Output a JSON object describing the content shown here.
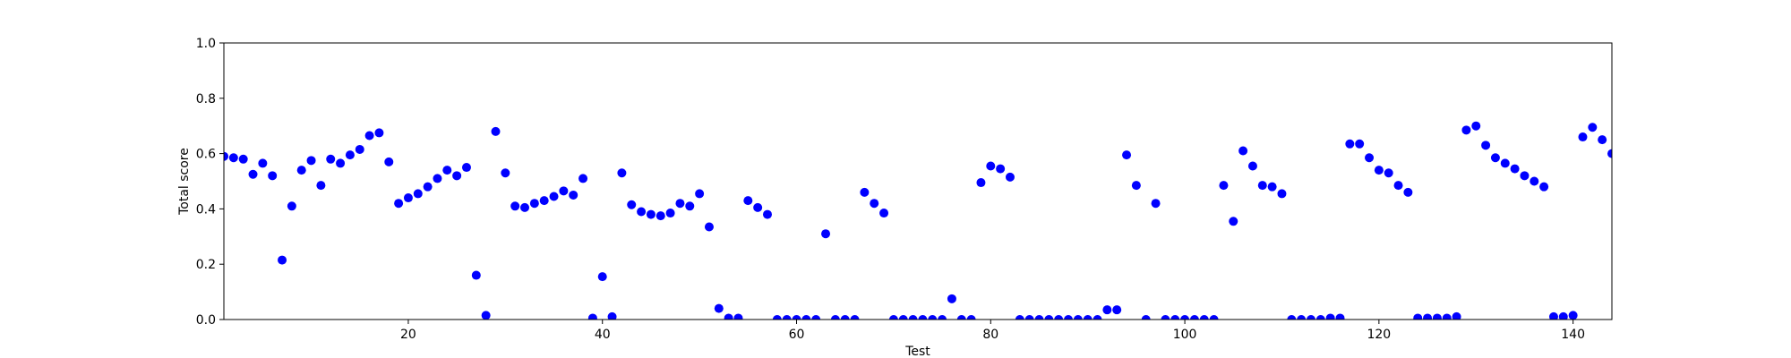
{
  "chart_data": {
    "type": "scatter",
    "title": "",
    "xlabel": "Test",
    "ylabel": "Total score",
    "xlim": [
      1,
      144
    ],
    "ylim": [
      0.0,
      1.0
    ],
    "x_ticks": [
      20,
      40,
      60,
      80,
      100,
      120,
      140
    ],
    "y_ticks": [
      0.0,
      0.2,
      0.4,
      0.6,
      0.8,
      1.0
    ],
    "x_tick_labels": [
      "20",
      "40",
      "60",
      "80",
      "100",
      "120",
      "140"
    ],
    "y_tick_labels": [
      "0.0",
      "0.2",
      "0.4",
      "0.6",
      "0.8",
      "1.0"
    ],
    "grid": false,
    "marker_color": "#0000ff",
    "series": [
      {
        "x": [
          1,
          2,
          3,
          4,
          5,
          6,
          7,
          8,
          9,
          10,
          11,
          12,
          13,
          14,
          15,
          16,
          17,
          18,
          19,
          20,
          21,
          22,
          23,
          24,
          25,
          26,
          27,
          28,
          29,
          30,
          31,
          32,
          33,
          34,
          35,
          36,
          37,
          38,
          39,
          40,
          41,
          42,
          43,
          44,
          45,
          46,
          47,
          48,
          49,
          50,
          51,
          52,
          53,
          54,
          55,
          56,
          57,
          58,
          59,
          60,
          61,
          62,
          63,
          64,
          65,
          66,
          67,
          68,
          69,
          70,
          71,
          72,
          73,
          74,
          75,
          76,
          77,
          78,
          79,
          80,
          81,
          82,
          83,
          84,
          85,
          86,
          87,
          88,
          89,
          90,
          91,
          92,
          93,
          94,
          95,
          96,
          97,
          98,
          99,
          100,
          101,
          102,
          103,
          104,
          105,
          106,
          107,
          108,
          109,
          110,
          111,
          112,
          113,
          114,
          115,
          116,
          117,
          118,
          119,
          120,
          121,
          122,
          123,
          124,
          125,
          126,
          127,
          128,
          129,
          130,
          131,
          132,
          133,
          134,
          135,
          136,
          137,
          138,
          139,
          140,
          141,
          142,
          143,
          144
        ],
        "y": [
          0.59,
          0.585,
          0.58,
          0.525,
          0.565,
          0.52,
          0.215,
          0.41,
          0.54,
          0.575,
          0.485,
          0.58,
          0.565,
          0.595,
          0.615,
          0.665,
          0.675,
          0.57,
          0.42,
          0.44,
          0.455,
          0.48,
          0.51,
          0.54,
          0.52,
          0.55,
          0.16,
          0.015,
          0.68,
          0.53,
          0.41,
          0.405,
          0.42,
          0.43,
          0.445,
          0.465,
          0.45,
          0.51,
          0.005,
          0.155,
          0.01,
          0.53,
          0.415,
          0.39,
          0.38,
          0.375,
          0.385,
          0.42,
          0.41,
          0.455,
          0.335,
          0.04,
          0.005,
          0.005,
          0.43,
          0.405,
          0.38,
          0.0,
          0.0,
          0.0,
          0.0,
          0.0,
          0.31,
          0.0,
          0.0,
          0.0,
          0.46,
          0.42,
          0.385,
          0.0,
          0.0,
          0.0,
          0.0,
          0.0,
          0.0,
          0.075,
          0.0,
          0.0,
          0.495,
          0.555,
          0.545,
          0.515,
          0.0,
          0.0,
          0.0,
          0.0,
          0.0,
          0.0,
          0.0,
          0.0,
          0.0,
          0.035,
          0.035,
          0.595,
          0.485,
          0.0,
          0.42,
          0.0,
          0.0,
          0.0,
          0.0,
          0.0,
          0.0,
          0.485,
          0.355,
          0.61,
          0.555,
          0.485,
          0.48,
          0.455,
          0.0,
          0.0,
          0.0,
          0.0,
          0.005,
          0.005,
          0.635,
          0.635,
          0.585,
          0.54,
          0.53,
          0.485,
          0.46,
          0.005,
          0.005,
          0.005,
          0.005,
          0.01,
          0.685,
          0.7,
          0.63,
          0.585,
          0.565,
          0.545,
          0.52,
          0.5,
          0.48,
          0.01,
          0.01,
          0.015,
          0.66,
          0.695,
          0.65,
          0.6
        ]
      }
    ]
  }
}
